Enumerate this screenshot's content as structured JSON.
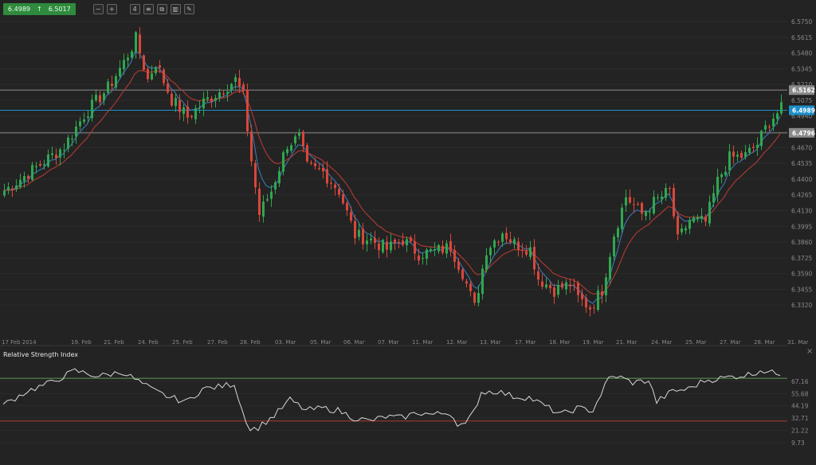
{
  "toolbar": {
    "bid": "6.4989",
    "ask": "6.5017",
    "period_label": "4",
    "icons": [
      "zoom-out-icon",
      "zoom-in-icon",
      "period-icon",
      "indicators-icon",
      "copy-icon",
      "chart-type-icon",
      "draw-icon"
    ]
  },
  "colors": {
    "background": "#232323",
    "bull": "#2ea84f",
    "bear": "#d9473a",
    "ma_fast": "#3a78b6",
    "ma_slow": "#b23a34",
    "level_line": "#8c8c8c",
    "current_line": "#1d8fc9",
    "rsi_line": "#d8d8d8",
    "rsi_upper": "#5f9a4e",
    "rsi_lower": "#b03a2e"
  },
  "price_labels": {
    "upper_level": "6.5162",
    "current": "6.4989",
    "lower_level": "6.4796"
  },
  "rsi": {
    "title": "Relative Strength Index",
    "close_label": "×"
  },
  "chart_data": [
    {
      "type": "candlestick",
      "x_ticks": [
        "17 Feb 2014",
        "19. Feb",
        "21. Feb",
        "24. Feb",
        "25. Feb",
        "27. Feb",
        "28. Feb",
        "03. Mar",
        "05. Mar",
        "06. Mar",
        "07. Mar",
        "11. Mar",
        "12. Mar",
        "13. Mar",
        "17. Mar",
        "18. Mar",
        "19. Mar",
        "21. Mar",
        "24. Mar",
        "25. Mar",
        "27. Mar",
        "28. Mar",
        "31. Mar"
      ],
      "y_ticks": [
        "6.5750",
        "6.5615",
        "6.5480",
        "6.5345",
        "6.5210",
        "6.5075",
        "6.4940",
        "6.4805",
        "6.4670",
        "6.4535",
        "6.4400",
        "6.4265",
        "6.4130",
        "6.3995",
        "6.3860",
        "6.3725",
        "6.3590",
        "6.3455",
        "6.3320"
      ],
      "ylim": [
        6.3185,
        6.5818
      ],
      "levels": [
        6.5162,
        6.4796
      ],
      "current_price": 6.4989,
      "anchors": [
        [
          0,
          6.43
        ],
        [
          8,
          6.45
        ],
        [
          15,
          6.468
        ],
        [
          20,
          6.495
        ],
        [
          26,
          6.518
        ],
        [
          30,
          6.54
        ],
        [
          33,
          6.56
        ],
        [
          36,
          6.525
        ],
        [
          38,
          6.54
        ],
        [
          42,
          6.508
        ],
        [
          46,
          6.493
        ],
        [
          50,
          6.506
        ],
        [
          54,
          6.515
        ],
        [
          58,
          6.525
        ],
        [
          60,
          6.51
        ],
        [
          62,
          6.456
        ],
        [
          64,
          6.41
        ],
        [
          67,
          6.43
        ],
        [
          71,
          6.47
        ],
        [
          74,
          6.475
        ],
        [
          76,
          6.45
        ],
        [
          80,
          6.446
        ],
        [
          84,
          6.43
        ],
        [
          88,
          6.392
        ],
        [
          92,
          6.388
        ],
        [
          96,
          6.38
        ],
        [
          100,
          6.388
        ],
        [
          104,
          6.376
        ],
        [
          108,
          6.378
        ],
        [
          112,
          6.382
        ],
        [
          115,
          6.36
        ],
        [
          118,
          6.33
        ],
        [
          121,
          6.38
        ],
        [
          125,
          6.395
        ],
        [
          128,
          6.385
        ],
        [
          132,
          6.38
        ],
        [
          134,
          6.355
        ],
        [
          138,
          6.345
        ],
        [
          142,
          6.35
        ],
        [
          144,
          6.338
        ],
        [
          147,
          6.33
        ],
        [
          150,
          6.345
        ],
        [
          153,
          6.393
        ],
        [
          156,
          6.425
        ],
        [
          160,
          6.41
        ],
        [
          163,
          6.42
        ],
        [
          167,
          6.43
        ],
        [
          169,
          6.387
        ],
        [
          172,
          6.405
        ],
        [
          176,
          6.403
        ],
        [
          179,
          6.438
        ],
        [
          182,
          6.458
        ],
        [
          186,
          6.46
        ],
        [
          189,
          6.47
        ],
        [
          192,
          6.49
        ],
        [
          195,
          6.5
        ]
      ],
      "ma_fast_period": 5,
      "ma_slow_period": 12
    },
    {
      "type": "line",
      "name": "Relative Strength Index",
      "y_ticks": [
        "67.16",
        "55.68",
        "44.19",
        "32.71",
        "21.22",
        "9.73"
      ],
      "ylim": [
        4.5,
        82.0
      ],
      "levels": [
        70,
        30
      ],
      "anchors": [
        [
          0,
          45
        ],
        [
          6,
          58
        ],
        [
          12,
          66
        ],
        [
          18,
          77
        ],
        [
          24,
          72
        ],
        [
          30,
          76
        ],
        [
          34,
          67
        ],
        [
          38,
          58
        ],
        [
          42,
          52
        ],
        [
          46,
          48
        ],
        [
          50,
          60
        ],
        [
          54,
          62
        ],
        [
          58,
          65
        ],
        [
          60,
          40
        ],
        [
          62,
          22
        ],
        [
          64,
          24
        ],
        [
          68,
          35
        ],
        [
          72,
          50
        ],
        [
          76,
          40
        ],
        [
          80,
          42
        ],
        [
          84,
          40
        ],
        [
          88,
          33
        ],
        [
          92,
          30
        ],
        [
          96,
          34
        ],
        [
          100,
          33
        ],
        [
          104,
          38
        ],
        [
          108,
          36
        ],
        [
          112,
          38
        ],
        [
          114,
          28
        ],
        [
          116,
          26
        ],
        [
          118,
          38
        ],
        [
          120,
          57
        ],
        [
          124,
          58
        ],
        [
          128,
          53
        ],
        [
          132,
          52
        ],
        [
          136,
          44
        ],
        [
          140,
          36
        ],
        [
          144,
          42
        ],
        [
          148,
          40
        ],
        [
          152,
          70
        ],
        [
          154,
          72
        ],
        [
          158,
          66
        ],
        [
          162,
          68
        ],
        [
          164,
          48
        ],
        [
          168,
          58
        ],
        [
          172,
          60
        ],
        [
          176,
          68
        ],
        [
          180,
          70
        ],
        [
          184,
          72
        ],
        [
          188,
          74
        ],
        [
          190,
          78
        ],
        [
          193,
          75
        ],
        [
          195,
          75
        ]
      ]
    }
  ]
}
